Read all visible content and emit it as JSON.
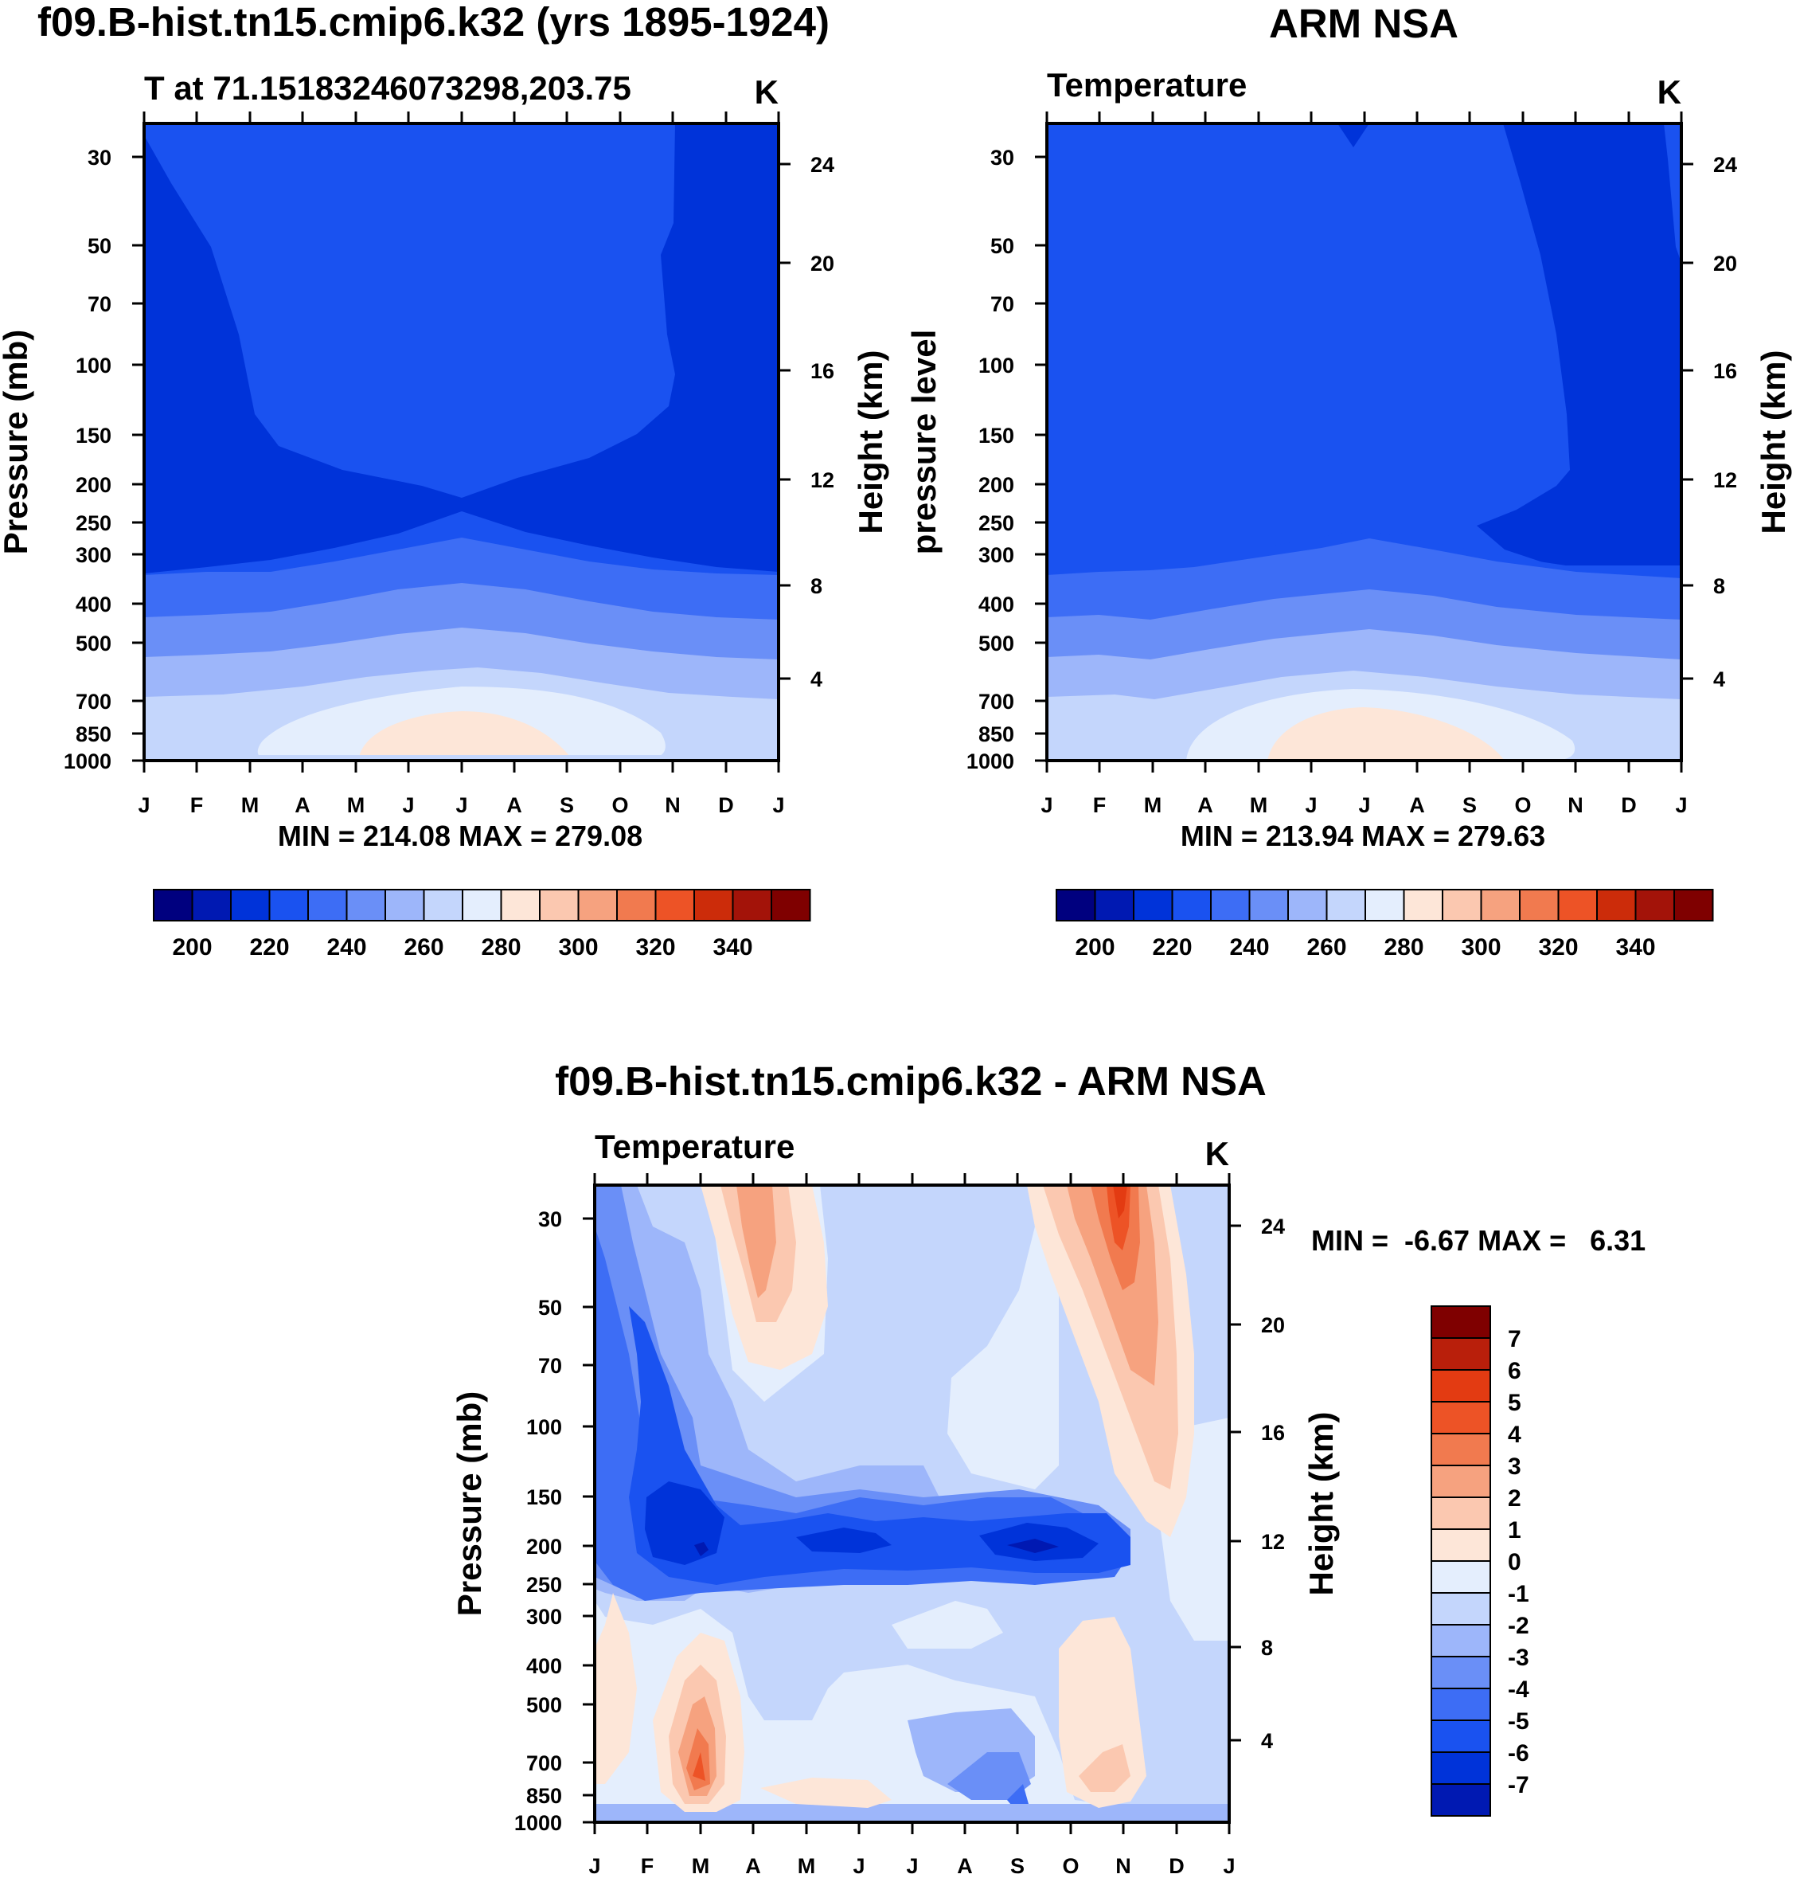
{
  "panels": [
    {
      "id": "model",
      "title": "f09.B-hist.tn15.cmip6.k32 (yrs 1895-1924)",
      "left_string": "T at 71.15183246073298,203.75",
      "right_string": "K",
      "ylabel": "Pressure (mb)",
      "right_label": "Height (km)",
      "stats": "MIN = 214.08 MAX = 279.08",
      "colorbar_labels": [
        "200",
        "220",
        "240",
        "260",
        "280",
        "300",
        "320",
        "340"
      ]
    },
    {
      "id": "obs",
      "title": "ARM NSA",
      "left_string": "Temperature",
      "right_string": "K",
      "ylabel": "pressure level",
      "right_label": "Height (km)",
      "stats": "MIN = 213.94 MAX = 279.63",
      "colorbar_labels": [
        "200",
        "220",
        "240",
        "260",
        "280",
        "300",
        "320",
        "340"
      ]
    },
    {
      "id": "diff",
      "title": "f09.B-hist.tn15.cmip6.k32 - ARM NSA",
      "left_string": "Temperature",
      "right_string": "K",
      "ylabel": "Pressure (mb)",
      "right_label": "Height (km)",
      "stats": "MIN =  -6.67 MAX =   6.31",
      "colorbar_labels": [
        "7",
        "6",
        "5",
        "4",
        "3",
        "2",
        "1",
        "0",
        "-1",
        "-2",
        "-3",
        "-4",
        "-5",
        "-6",
        "-7"
      ]
    }
  ],
  "chart_data": [
    {
      "type": "heatmap",
      "title": "f09.B-hist.tn15.cmip6.k32 (yrs 1895-1924)",
      "variable": "T at 71.15183246073298,203.75",
      "units": "K",
      "xlabel": "",
      "ylabel": "Pressure (mb)",
      "right_axis_label": "Height (km)",
      "x_ticks": [
        "J",
        "F",
        "M",
        "A",
        "M",
        "J",
        "J",
        "A",
        "S",
        "O",
        "N",
        "D",
        "J"
      ],
      "y_ticks": [
        30,
        50,
        70,
        100,
        150,
        200,
        250,
        300,
        400,
        500,
        700,
        850,
        1000
      ],
      "right_ticks": [
        24,
        20,
        16,
        12,
        8,
        4
      ],
      "contour_levels": [
        190,
        200,
        210,
        220,
        230,
        240,
        250,
        260,
        270,
        280,
        290,
        300,
        310,
        320,
        330,
        340,
        350
      ],
      "min": 214.08,
      "max": 279.08,
      "profile_jan": [
        [
          30,
          220
        ],
        [
          50,
          218
        ],
        [
          100,
          218
        ],
        [
          150,
          217
        ],
        [
          200,
          217
        ],
        [
          250,
          217
        ],
        [
          300,
          218
        ],
        [
          400,
          232
        ],
        [
          500,
          241
        ],
        [
          700,
          252
        ],
        [
          850,
          258
        ],
        [
          1000,
          256
        ]
      ],
      "profile_jul": [
        [
          30,
          228
        ],
        [
          50,
          229
        ],
        [
          100,
          229
        ],
        [
          150,
          228
        ],
        [
          200,
          226
        ],
        [
          250,
          229
        ],
        [
          300,
          237
        ],
        [
          400,
          248
        ],
        [
          500,
          257
        ],
        [
          700,
          268
        ],
        [
          850,
          275
        ],
        [
          1000,
          279
        ]
      ]
    },
    {
      "type": "heatmap",
      "title": "ARM NSA",
      "variable": "Temperature",
      "units": "K",
      "xlabel": "",
      "ylabel": "pressure level",
      "right_axis_label": "Height (km)",
      "x_ticks": [
        "J",
        "F",
        "M",
        "A",
        "M",
        "J",
        "J",
        "A",
        "S",
        "O",
        "N",
        "D",
        "J"
      ],
      "y_ticks": [
        30,
        50,
        70,
        100,
        150,
        200,
        250,
        300,
        400,
        500,
        700,
        850,
        1000
      ],
      "right_ticks": [
        24,
        20,
        16,
        12,
        8,
        4
      ],
      "contour_levels": [
        190,
        200,
        210,
        220,
        230,
        240,
        250,
        260,
        270,
        280,
        290,
        300,
        310,
        320,
        330,
        340,
        350
      ],
      "min": 213.94,
      "max": 279.63
    },
    {
      "type": "heatmap",
      "title": "f09.B-hist.tn15.cmip6.k32 - ARM NSA",
      "variable": "Temperature",
      "units": "K",
      "xlabel": "",
      "ylabel": "Pressure (mb)",
      "right_axis_label": "Height (km)",
      "x_ticks": [
        "J",
        "F",
        "M",
        "A",
        "M",
        "J",
        "J",
        "A",
        "S",
        "O",
        "N",
        "D",
        "J"
      ],
      "y_ticks": [
        30,
        50,
        70,
        100,
        150,
        200,
        250,
        300,
        400,
        500,
        700,
        850,
        1000
      ],
      "right_ticks": [
        24,
        20,
        16,
        12,
        8,
        4
      ],
      "contour_levels": [
        -7,
        -6,
        -5,
        -4,
        -3,
        -2,
        -1,
        0,
        1,
        2,
        3,
        4,
        5,
        6,
        7
      ],
      "min": -6.67,
      "max": 6.31,
      "features": [
        {
          "month": "Mar",
          "pressure_mb": 200,
          "value": -6.5
        },
        {
          "month": "Sep",
          "pressure_mb": 200,
          "value": -6.7
        },
        {
          "month": "Nov",
          "pressure_mb": 30,
          "value": 6.3
        },
        {
          "month": "Apr",
          "pressure_mb": 30,
          "value": 3.5
        },
        {
          "month": "Mar",
          "pressure_mb": 850,
          "value": 5.0
        }
      ]
    }
  ],
  "colors": {
    "temp_fill": [
      "#00007f",
      "#0019b2",
      "#0033d9",
      "#1a52f0",
      "#3d6df5",
      "#6a8ff7",
      "#9db6fa",
      "#c4d6fc",
      "#e4eefd",
      "#fde6d8",
      "#fbc8b0",
      "#f6a27f",
      "#f17a4f",
      "#ed5326",
      "#e33b12",
      "#b91f0b",
      "#7f0000"
    ],
    "temp_bar": [
      "#00007f",
      "#0019b2",
      "#0033d9",
      "#1a52f0",
      "#3d6df5",
      "#6a8ff7",
      "#9db6fa",
      "#c4d6fc",
      "#e4eefd",
      "#fde6d8",
      "#fbc8b0",
      "#f6a27f",
      "#f17a4f",
      "#ed5326",
      "#cc2c0a",
      "#a31309",
      "#7f0000"
    ],
    "diff_bar": [
      "#7f0000",
      "#b91f0b",
      "#e33b12",
      "#ed5326",
      "#f17a4f",
      "#f6a27f",
      "#fbc8b0",
      "#fde6d8",
      "#e4eefd",
      "#c4d6fc",
      "#9db6fa",
      "#6a8ff7",
      "#3d6df5",
      "#1a52f0",
      "#0033d9",
      "#0019b2"
    ]
  }
}
